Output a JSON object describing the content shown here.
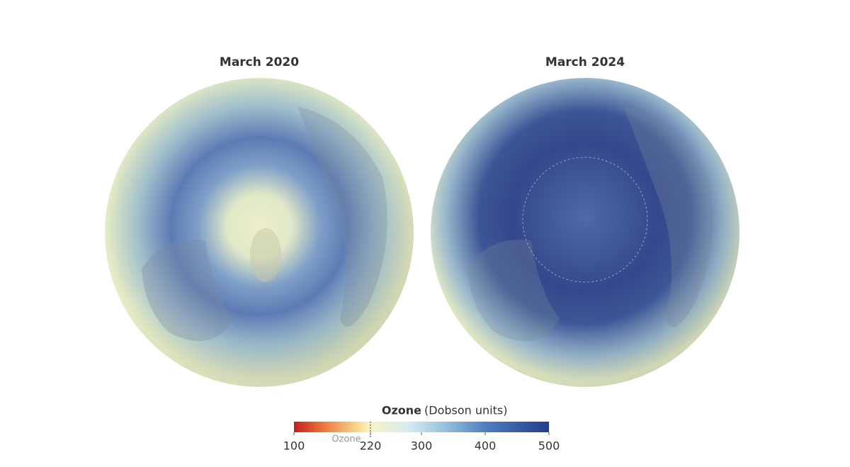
{
  "maps": [
    {
      "title": "March 2020"
    },
    {
      "title": "March 2024"
    }
  ],
  "colorbar": {
    "title": "Ozone",
    "unit": "(Dobson units)",
    "range": [
      100,
      500
    ],
    "ticks": [
      100,
      220,
      300,
      400,
      500
    ],
    "threshold": 220,
    "threshold_label": "Ozone"
  }
}
